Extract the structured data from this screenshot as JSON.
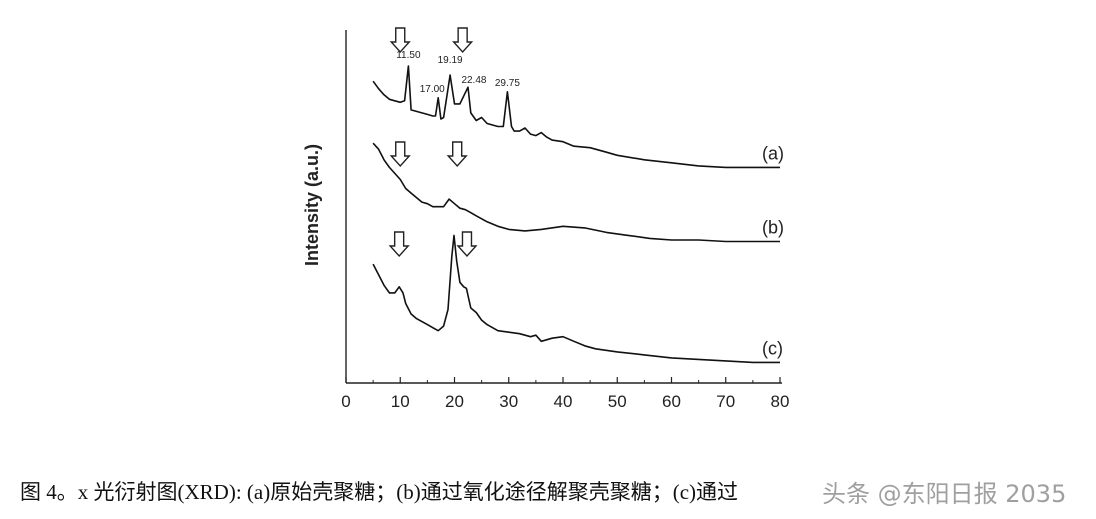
{
  "chart_data": {
    "type": "line",
    "ylabel": "Intensity (a.u.)",
    "xlabel": "",
    "xlim": [
      0,
      80
    ],
    "x_ticks": [
      "0",
      "10",
      "20",
      "30",
      "40",
      "50",
      "60",
      "70",
      "80"
    ],
    "grid": false,
    "series": [
      {
        "name": "(a)",
        "x": [
          5,
          6,
          7,
          8,
          9,
          10,
          10.8,
          11.5,
          12,
          13,
          14,
          15,
          16,
          16.5,
          17.0,
          17.5,
          18,
          19.19,
          20,
          21,
          22.48,
          23,
          24,
          25,
          26,
          27,
          28,
          29,
          29.75,
          30.5,
          31,
          32,
          33,
          34,
          35,
          36,
          37,
          38,
          40,
          42,
          45,
          48,
          50,
          55,
          60,
          65,
          70,
          75,
          80
        ],
        "y": [
          8.6,
          8.1,
          7.7,
          7.4,
          7.3,
          7.2,
          7.3,
          9.6,
          6.7,
          6.6,
          6.5,
          6.4,
          6.3,
          6.3,
          7.5,
          6.1,
          6.2,
          9.0,
          7.1,
          7.1,
          8.2,
          6.5,
          6.0,
          6.2,
          5.8,
          5.7,
          5.6,
          5.6,
          7.9,
          5.6,
          5.3,
          5.3,
          5.5,
          5.1,
          5.0,
          5.2,
          4.9,
          4.7,
          4.6,
          4.3,
          4.2,
          3.9,
          3.7,
          3.4,
          3.2,
          3.0,
          2.9,
          2.9,
          2.9
        ],
        "peak_labels": [
          "11.50",
          "17.00",
          "19.19",
          "22.48",
          "29.75"
        ]
      },
      {
        "name": "(b)",
        "x": [
          5,
          6,
          7,
          8,
          9,
          10,
          11,
          12,
          13,
          14,
          15,
          16,
          17,
          18,
          19,
          20,
          21,
          22,
          23,
          24,
          26,
          28,
          30,
          33,
          36,
          40,
          44,
          48,
          52,
          56,
          60,
          65,
          70,
          75,
          80
        ],
        "y": [
          4.5,
          4.1,
          3.4,
          2.9,
          2.5,
          2.1,
          1.5,
          1.2,
          0.9,
          0.6,
          0.5,
          0.3,
          0.3,
          0.3,
          0.8,
          0.5,
          0.2,
          0.1,
          -0.1,
          -0.3,
          -0.7,
          -1.0,
          -1.2,
          -1.3,
          -1.2,
          -1.0,
          -1.1,
          -1.4,
          -1.6,
          -1.8,
          -1.9,
          -1.9,
          -2.0,
          -2.0,
          -2.0
        ]
      },
      {
        "name": "(c)",
        "x": [
          5,
          6,
          7,
          8,
          9,
          9.8,
          10.5,
          11,
          12,
          13,
          14,
          15,
          16,
          17,
          18,
          18.8,
          19.5,
          19.9,
          20.4,
          21,
          21.7,
          22.2,
          23,
          24,
          25,
          26,
          28,
          30,
          32,
          34,
          35,
          36,
          38,
          40,
          42,
          44,
          46,
          50,
          55,
          60,
          65,
          70,
          75,
          80
        ],
        "y": [
          -3.5,
          -4.2,
          -4.9,
          -5.4,
          -5.4,
          -5.0,
          -5.4,
          -6.1,
          -6.8,
          -7.1,
          -7.3,
          -7.5,
          -7.7,
          -7.9,
          -7.6,
          -6.5,
          -3.0,
          -1.6,
          -3.3,
          -4.7,
          -5.0,
          -5.1,
          -6.4,
          -6.7,
          -7.2,
          -7.5,
          -7.9,
          -8.0,
          -8.1,
          -8.3,
          -8.2,
          -8.6,
          -8.4,
          -8.3,
          -8.6,
          -8.9,
          -9.1,
          -9.3,
          -9.5,
          -9.7,
          -9.8,
          -9.9,
          -10.0,
          -10.0
        ]
      }
    ],
    "arrows": [
      {
        "series": "(a)",
        "x": 10
      },
      {
        "series": "(a)",
        "x": 21.5
      },
      {
        "series": "(b)",
        "x": 10
      },
      {
        "series": "(b)",
        "x": 20.5
      },
      {
        "series": "(c)",
        "x": 9.8
      },
      {
        "series": "(c)",
        "x": 22.3
      }
    ]
  },
  "caption": {
    "text": "图 4。x 光衍射图(XRD): (a)原始壳聚糖；(b)通过氧化途径解聚壳聚糖；(c)通过",
    "watermark": "头条 @东阳日报 2035"
  }
}
